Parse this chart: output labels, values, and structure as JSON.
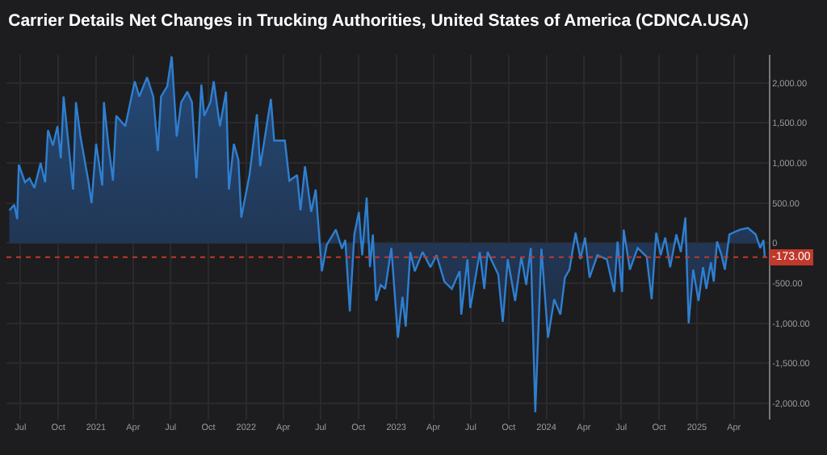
{
  "chart_data": {
    "type": "area",
    "title": "Carrier Details Net Changes in Trucking Authorities, United States of America (CDNCA.USA)",
    "x": [
      "2020-06-04",
      "2020-06-16",
      "2020-06-23",
      "2020-06-27",
      "2020-07-12",
      "2020-07-23",
      "2020-08-04",
      "2020-08-19",
      "2020-08-30",
      "2020-09-06",
      "2020-09-18",
      "2020-09-29",
      "2020-10-07",
      "2020-10-14",
      "2020-10-25",
      "2020-11-06",
      "2020-11-13",
      "2020-11-24",
      "2020-12-13",
      "2020-12-21",
      "2021-01-01",
      "2021-01-16",
      "2021-01-20",
      "2021-01-31",
      "2021-02-11",
      "2021-02-19",
      "2021-03-13",
      "2021-04-05",
      "2021-04-16",
      "2021-05-05",
      "2021-05-20",
      "2021-05-31",
      "2021-06-08",
      "2021-06-23",
      "2021-07-04",
      "2021-07-16",
      "2021-07-27",
      "2021-08-11",
      "2021-08-22",
      "2021-09-02",
      "2021-09-14",
      "2021-09-21",
      "2021-10-06",
      "2021-10-14",
      "2021-10-29",
      "2021-11-13",
      "2021-11-20",
      "2021-12-02",
      "2021-12-13",
      "2021-12-20",
      "2022-01-09",
      "2022-01-27",
      "2022-02-04",
      "2022-02-15",
      "2022-03-02",
      "2022-03-10",
      "2022-04-05",
      "2022-04-16",
      "2022-05-05",
      "2022-05-13",
      "2022-05-24",
      "2022-06-08",
      "2022-06-19",
      "2022-07-04",
      "2022-07-16",
      "2022-08-07",
      "2022-08-22",
      "2022-08-30",
      "2022-09-10",
      "2022-09-21",
      "2022-10-02",
      "2022-10-10",
      "2022-10-21",
      "2022-10-29",
      "2022-11-05",
      "2022-11-13",
      "2022-11-24",
      "2022-12-05",
      "2022-12-20",
      "2023-01-05",
      "2023-01-16",
      "2023-01-24",
      "2023-02-04",
      "2023-02-15",
      "2023-03-06",
      "2023-03-25",
      "2023-04-09",
      "2023-04-28",
      "2023-05-16",
      "2023-06-04",
      "2023-06-08",
      "2023-06-23",
      "2023-06-30",
      "2023-07-23",
      "2023-08-03",
      "2023-08-11",
      "2023-09-06",
      "2023-09-17",
      "2023-09-29",
      "2023-10-17",
      "2023-11-01",
      "2023-11-13",
      "2023-11-24",
      "2023-12-05",
      "2023-12-20",
      "2024-01-05",
      "2024-01-20",
      "2024-02-04",
      "2024-02-15",
      "2024-02-26",
      "2024-03-12",
      "2024-03-24",
      "2024-04-04",
      "2024-04-15",
      "2024-05-04",
      "2024-05-27",
      "2024-06-14",
      "2024-06-22",
      "2024-07-03",
      "2024-07-07",
      "2024-07-22",
      "2024-08-10",
      "2024-09-01",
      "2024-09-13",
      "2024-09-24",
      "2024-10-05",
      "2024-10-16",
      "2024-10-28",
      "2024-11-12",
      "2024-11-23",
      "2024-12-04",
      "2024-12-12",
      "2024-12-23",
      "2025-01-05",
      "2025-01-16",
      "2025-01-24",
      "2025-02-04",
      "2025-02-11",
      "2025-02-19",
      "2025-03-02",
      "2025-03-10",
      "2025-03-21",
      "2025-04-16",
      "2025-05-05",
      "2025-05-24",
      "2025-06-04",
      "2025-06-12",
      "2025-06-15"
    ],
    "series": [
      {
        "color": "#2f7fd0",
        "values": [
          410,
          480,
          300,
          980,
          760,
          810,
          690,
          1000,
          760,
          1410,
          1220,
          1460,
          1060,
          1830,
          1280,
          670,
          1760,
          1330,
          780,
          500,
          1240,
          720,
          1760,
          1220,
          780,
          1590,
          1460,
          2020,
          1830,
          2070,
          1830,
          1150,
          1830,
          1960,
          2330,
          1330,
          1760,
          1890,
          1760,
          810,
          1980,
          1590,
          1760,
          2020,
          1460,
          1890,
          670,
          1240,
          1040,
          320,
          850,
          1610,
          960,
          1310,
          1800,
          1280,
          1280,
          780,
          850,
          410,
          960,
          390,
          670,
          -350,
          -20,
          170,
          -70,
          40,
          -850,
          110,
          390,
          -150,
          570,
          -300,
          110,
          -720,
          -520,
          -570,
          -60,
          -1180,
          -670,
          -1040,
          -110,
          -350,
          -110,
          -300,
          -150,
          -480,
          -570,
          -350,
          -890,
          -200,
          -810,
          -110,
          -570,
          -110,
          -390,
          -980,
          -200,
          -720,
          -170,
          -520,
          -60,
          -2110,
          -70,
          -1180,
          -700,
          -890,
          -430,
          -330,
          130,
          -200,
          70,
          -430,
          -150,
          -200,
          -610,
          20,
          -610,
          170,
          -330,
          -60,
          -170,
          -700,
          130,
          -150,
          70,
          -300,
          110,
          -110,
          320,
          -1000,
          -330,
          -720,
          -300,
          -570,
          -240,
          -480,
          20,
          -150,
          -330,
          110,
          170,
          190,
          110,
          -60,
          40,
          -173
        ]
      }
    ],
    "xlim": [
      "2020-05-28",
      "2025-06-25"
    ],
    "xticks": [
      {
        "value": "2020-07-01",
        "label": "Jul"
      },
      {
        "value": "2020-10-01",
        "label": "Oct"
      },
      {
        "value": "2021-01-01",
        "label": "2021"
      },
      {
        "value": "2021-04-01",
        "label": "Apr"
      },
      {
        "value": "2021-07-01",
        "label": "Jul"
      },
      {
        "value": "2021-10-01",
        "label": "Oct"
      },
      {
        "value": "2022-01-01",
        "label": "2022"
      },
      {
        "value": "2022-04-01",
        "label": "Apr"
      },
      {
        "value": "2022-07-01",
        "label": "Jul"
      },
      {
        "value": "2022-10-01",
        "label": "Oct"
      },
      {
        "value": "2023-01-01",
        "label": "2023"
      },
      {
        "value": "2023-04-01",
        "label": "Apr"
      },
      {
        "value": "2023-07-01",
        "label": "Jul"
      },
      {
        "value": "2023-10-01",
        "label": "Oct"
      },
      {
        "value": "2024-01-01",
        "label": "2024"
      },
      {
        "value": "2024-04-01",
        "label": "Apr"
      },
      {
        "value": "2024-07-01",
        "label": "Jul"
      },
      {
        "value": "2024-10-01",
        "label": "Oct"
      },
      {
        "value": "2025-01-01",
        "label": "2025"
      },
      {
        "value": "2025-04-01",
        "label": "Apr"
      }
    ],
    "ylim": [
      -2200,
      2350
    ],
    "yticks": [
      {
        "value": -2000,
        "label": "-2,000.00"
      },
      {
        "value": -1500,
        "label": "-1,500.00"
      },
      {
        "value": -1000,
        "label": "-1,000.00"
      },
      {
        "value": -500,
        "label": "-500.00"
      },
      {
        "value": 0,
        "label": "0"
      },
      {
        "value": 500,
        "label": "500.00"
      },
      {
        "value": 1000,
        "label": "1,000.00"
      },
      {
        "value": 1500,
        "label": "1,500.00"
      },
      {
        "value": 2000,
        "label": "2,000.00"
      }
    ],
    "ref_lines": [
      {
        "axis": "y",
        "value": -173,
        "label": "-173.00",
        "color": "#c0392b",
        "line_style": "dotted"
      }
    ],
    "grid": true
  }
}
